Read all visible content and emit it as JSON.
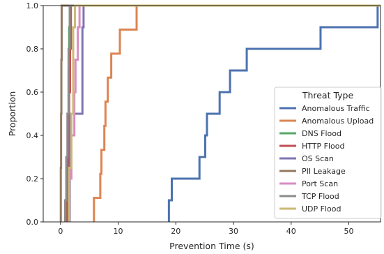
{
  "chart_data": {
    "type": "line",
    "subtype": "ecdf",
    "xlabel": "Prevention Time (s)",
    "ylabel": "Proportion",
    "xlim": [
      -3,
      55.5
    ],
    "ylim": [
      0,
      1.0
    ],
    "xticks": [
      0,
      10,
      20,
      30,
      40,
      50
    ],
    "yticks": [
      0.0,
      0.2,
      0.4,
      0.6,
      0.8,
      1.0
    ],
    "xtick_labels": [
      "0",
      "10",
      "20",
      "30",
      "40",
      "50"
    ],
    "ytick_labels": [
      "0.0",
      "0.2",
      "0.4",
      "0.6",
      "0.8",
      "1.0"
    ],
    "grid": false,
    "legend": {
      "title": "Threat Type",
      "placement": "lower-right"
    },
    "series": [
      {
        "name": "Anomalous Traffic",
        "color": "#4c72b0",
        "x": [
          18.8,
          19.3,
          24.1,
          25.1,
          25.4,
          27.6,
          29.4,
          32.3,
          45.1,
          55.0
        ],
        "y": [
          0.1,
          0.2,
          0.3,
          0.4,
          0.5,
          0.6,
          0.7,
          0.8,
          0.9,
          1.0
        ]
      },
      {
        "name": "Anomalous Upload",
        "color": "#dd8452",
        "x": [
          5.8,
          6.9,
          7.1,
          7.6,
          7.8,
          8.2,
          8.8,
          10.3,
          13.2
        ],
        "y": [
          0.111,
          0.222,
          0.333,
          0.444,
          0.556,
          0.667,
          0.778,
          0.889,
          1.0
        ]
      },
      {
        "name": "DNS Flood",
        "color": "#55a868",
        "x": [
          1.1,
          1.2,
          1.3,
          1.4,
          1.5,
          1.6
        ],
        "y": [
          0.1,
          0.3,
          0.5,
          0.7,
          0.9,
          1.0
        ]
      },
      {
        "name": "HTTP Flood",
        "color": "#c44e52",
        "x": [
          1.2,
          1.35,
          1.5,
          1.65,
          1.8
        ],
        "y": [
          0.2,
          0.4,
          0.6,
          0.8,
          1.0
        ]
      },
      {
        "name": "OS Scan",
        "color": "#8172b3",
        "x": [
          1.6,
          3.8,
          4.0
        ],
        "y": [
          0.5,
          0.9,
          1.0
        ]
      },
      {
        "name": "PII Leakage",
        "color": "#937860",
        "x": [
          0.05,
          0.1,
          0.15,
          0.2
        ],
        "y": [
          0.25,
          0.5,
          0.75,
          1.0
        ]
      },
      {
        "name": "Port Scan",
        "color": "#da8bc3",
        "x": [
          1.5,
          1.9,
          2.4,
          2.6,
          3.0,
          3.3
        ],
        "y": [
          0.2,
          0.4,
          0.6,
          0.75,
          0.9,
          1.0
        ]
      },
      {
        "name": "TCP Flood",
        "color": "#8c8c8c",
        "x": [
          0.8,
          1.0,
          1.2,
          1.4,
          1.6
        ],
        "y": [
          0.1,
          0.3,
          0.5,
          0.8,
          1.0
        ]
      },
      {
        "name": "UDP Flood",
        "color": "#ccb974",
        "x": [
          1.5,
          1.9,
          2.2,
          2.5
        ],
        "y": [
          0.25,
          0.5,
          0.9,
          1.0
        ]
      }
    ]
  }
}
